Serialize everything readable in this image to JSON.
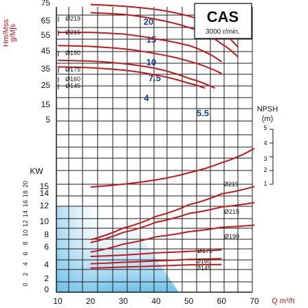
{
  "chart_data": [
    {
      "type": "line",
      "title": "CAS",
      "subtitle": "3000 r/min.",
      "ylabel": "Hm/Mss",
      "xlim": [
        10,
        70
      ],
      "ylim": [
        0,
        75
      ],
      "ytick_labels": [
        "75",
        "65",
        "55",
        "45",
        "35",
        "25",
        "15",
        "5"
      ],
      "impeller_labels": [
        "Ø219",
        "Ø215",
        "Ø190",
        "Ø175",
        "Ø160",
        "Ø145"
      ],
      "series": [
        {
          "name": "20",
          "x": [
            20,
            30,
            40,
            50,
            55,
            60,
            65
          ],
          "y": [
            76,
            75,
            73,
            69,
            65,
            59,
            50
          ]
        },
        {
          "name": "15",
          "x": [
            20,
            30,
            40,
            50,
            55,
            60,
            65
          ],
          "y": [
            71,
            70,
            67,
            62,
            58,
            52,
            44
          ]
        },
        {
          "name": "10",
          "x": [
            10,
            20,
            30,
            40,
            50,
            55,
            60
          ],
          "y": [
            59,
            59,
            58,
            55,
            51,
            47,
            41
          ]
        },
        {
          "name": "7.5",
          "x": [
            10,
            20,
            30,
            40,
            50,
            60
          ],
          "y": [
            51,
            50.5,
            49,
            46,
            41.5,
            34
          ]
        },
        {
          "name": "4",
          "x": [
            10,
            20,
            30,
            40,
            50,
            58
          ],
          "y": [
            42,
            41.5,
            40,
            37,
            31,
            25
          ]
        },
        {
          "name": "5.5",
          "x": [
            10,
            20,
            30,
            40,
            50,
            55
          ],
          "y": [
            38,
            37.5,
            36,
            33,
            28,
            25
          ]
        }
      ]
    },
    {
      "type": "line",
      "title": "NPSH (m)",
      "xlim": [
        10,
        70
      ],
      "ylim": [
        0,
        5.5
      ],
      "ytick_labels": [
        "5",
        "4",
        "3",
        "2",
        "1"
      ],
      "series": [
        {
          "name": "NPSH",
          "x": [
            20,
            30,
            40,
            50,
            60,
            70
          ],
          "y": [
            1.0,
            1.2,
            1.5,
            2.0,
            2.7,
            3.7
          ]
        }
      ]
    },
    {
      "type": "line",
      "title": "KW",
      "xlabel": "Q m³/h",
      "xlim": [
        10,
        70
      ],
      "ylim": [
        0,
        16
      ],
      "xtick_labels": [
        "10",
        "20",
        "30",
        "40",
        "50",
        "60",
        "70"
      ],
      "ytick_labels": [
        "15",
        "14",
        "12",
        "10",
        "8",
        "6",
        "4",
        "2",
        "0"
      ],
      "series": [
        {
          "name": "Ø219",
          "x": [
            20,
            30,
            40,
            50,
            60,
            70
          ],
          "y": [
            7.2,
            8.8,
            10.4,
            12.0,
            13.5,
            14.5
          ]
        },
        {
          "name": "Ø215",
          "x": [
            20,
            30,
            40,
            50,
            60,
            70
          ],
          "y": [
            6.8,
            8.2,
            9.6,
            10.8,
            11.7,
            12.3
          ]
        },
        {
          "name": "Ø190",
          "x": [
            20,
            30,
            40,
            50,
            60,
            70
          ],
          "y": [
            5.5,
            6.6,
            7.6,
            8.3,
            8.9,
            9.2
          ]
        },
        {
          "name": "Ø175",
          "x": [
            20,
            30,
            40,
            50,
            60
          ],
          "y": [
            4.9,
            5.1,
            5.4,
            5.6,
            5.8
          ]
        },
        {
          "name": "Ø160",
          "x": [
            20,
            30,
            40,
            50,
            60
          ],
          "y": [
            3.9,
            4.1,
            4.3,
            4.5,
            4.6
          ]
        },
        {
          "name": "Ø145",
          "x": [
            20,
            30,
            40,
            50,
            60
          ],
          "y": [
            3.3,
            3.45,
            3.6,
            3.75,
            3.8
          ]
        }
      ]
    }
  ],
  "colors": {
    "curve": "#c8141b",
    "grid": "#1a1a1a",
    "label_blue": "#1b3f95",
    "axis_unit": "#c0141b",
    "gradient_top": "#ffffff",
    "gradient_bottom": "#7ac6e8"
  }
}
